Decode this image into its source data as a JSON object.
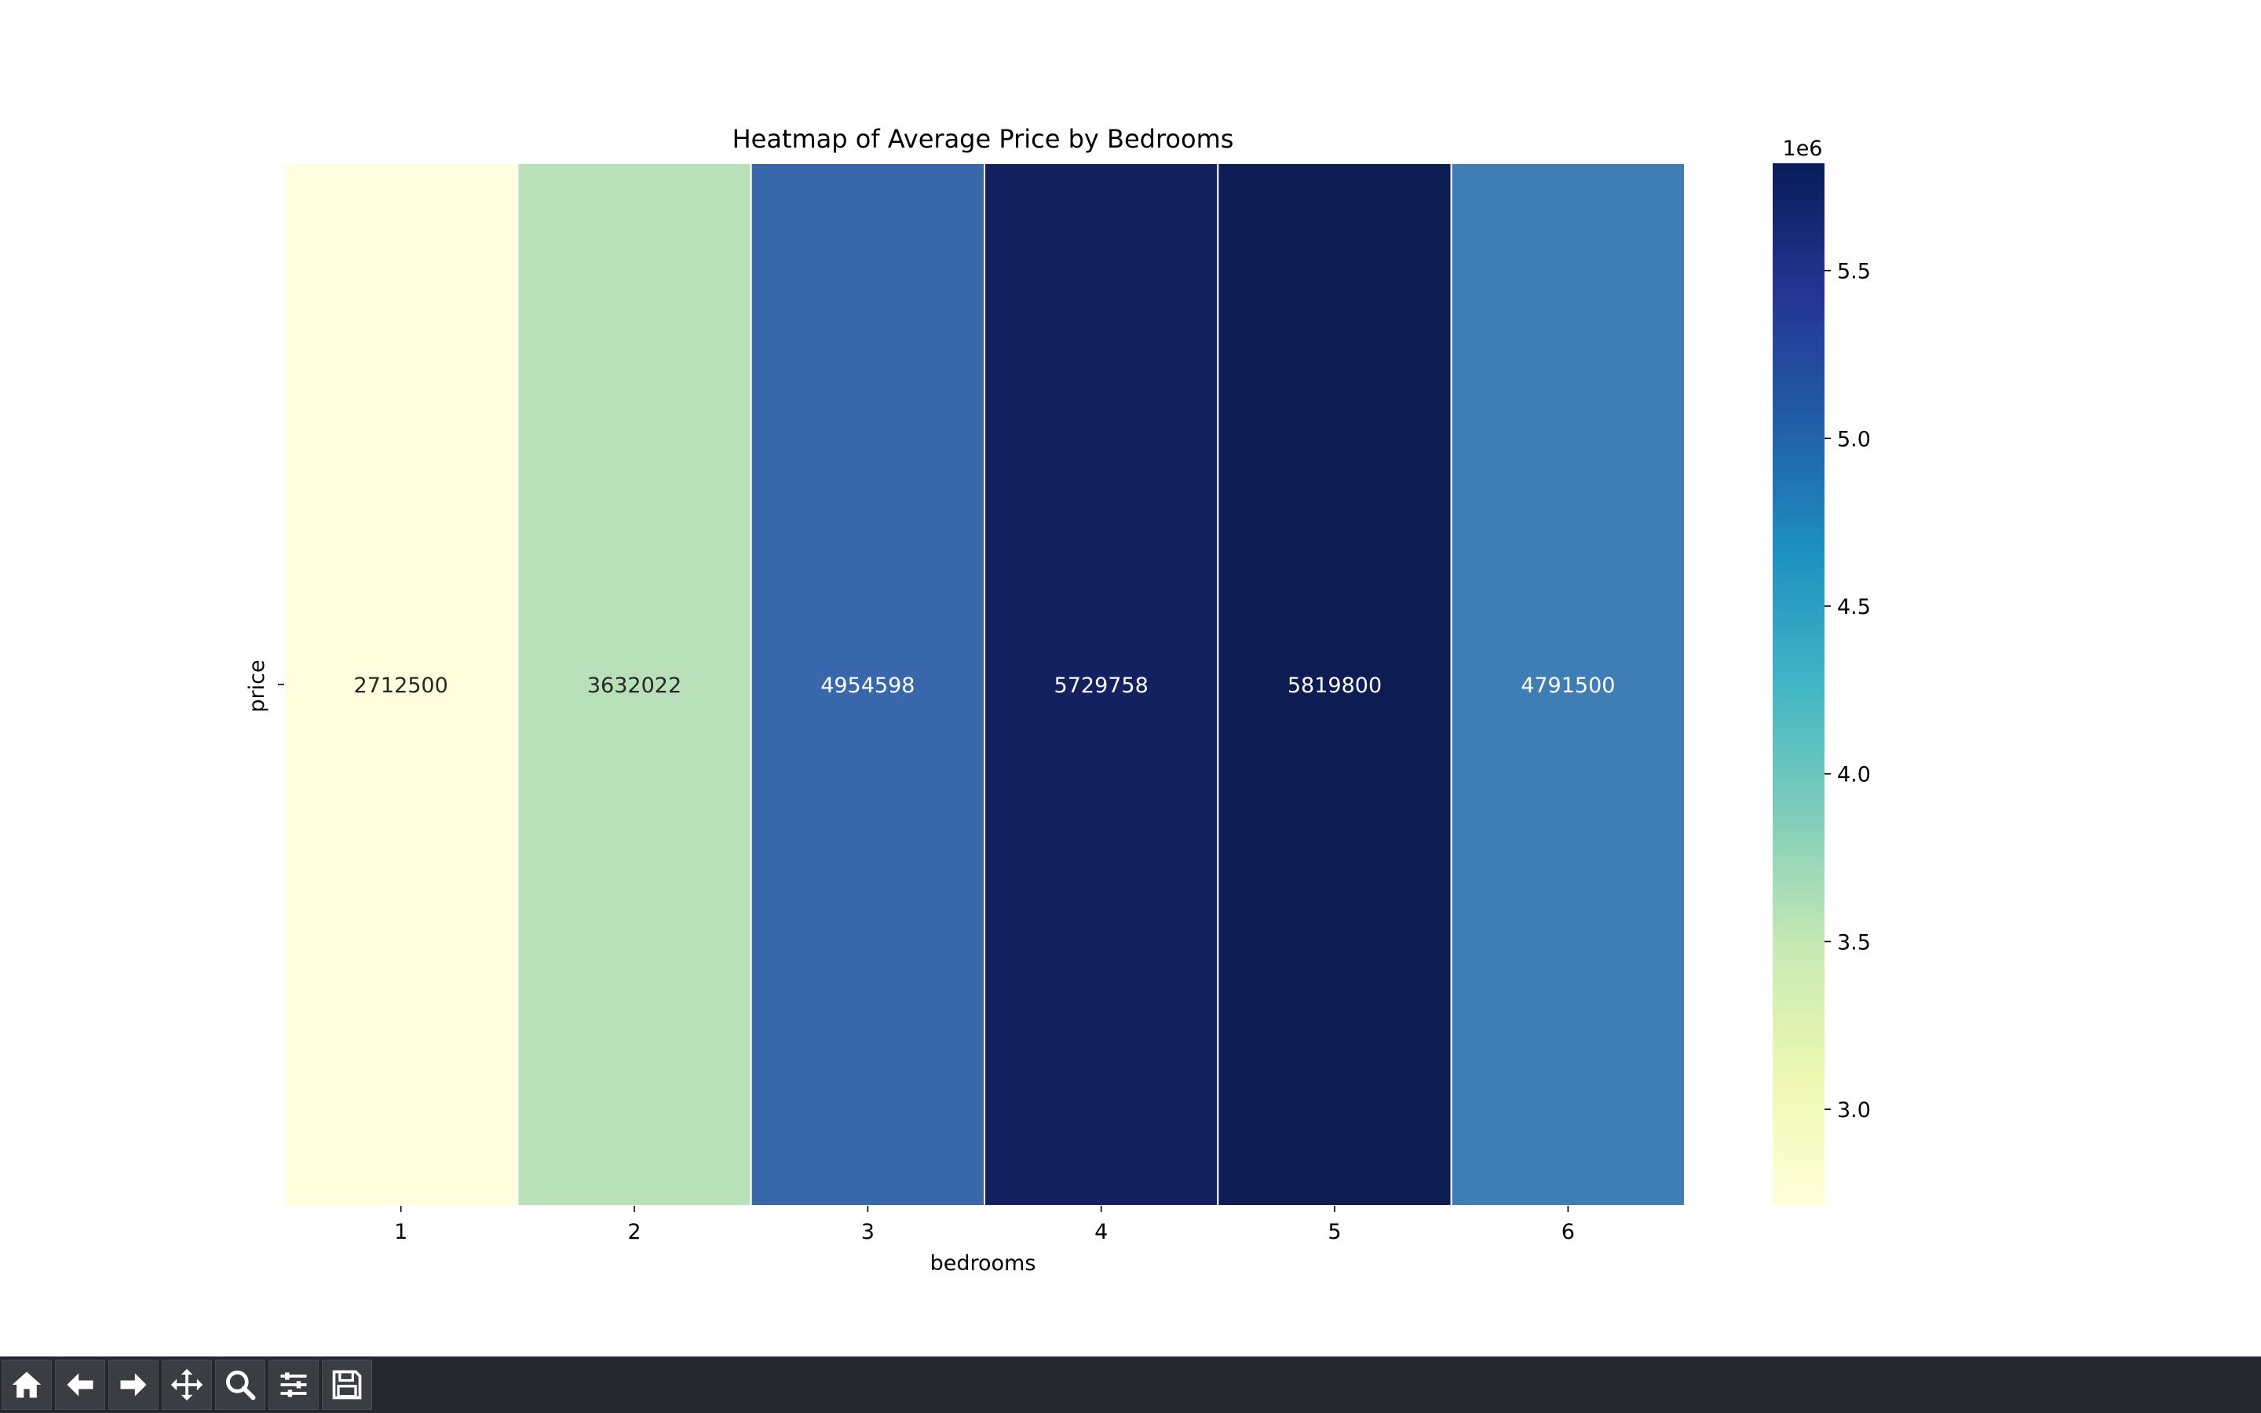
{
  "chart_data": {
    "type": "heatmap",
    "title": "Heatmap of Average Price by Bedrooms",
    "xlabel": "bedrooms",
    "ylabel": "price",
    "x_categories": [
      "1",
      "2",
      "3",
      "4",
      "5",
      "6"
    ],
    "y_categories": [
      ""
    ],
    "values": [
      [
        2712500,
        3632022,
        4954598,
        5729758,
        5819800,
        4791500
      ]
    ],
    "annotations": [
      "2712500",
      "3632022",
      "4954598",
      "5729758",
      "5819800",
      "4791500"
    ],
    "colormap": "YlGnBu",
    "colorbar": {
      "min": 2712500,
      "max": 5819800,
      "ticks": [
        3.0,
        3.5,
        4.0,
        4.5,
        5.0,
        5.5
      ],
      "tick_labels": [
        "3.0",
        "3.5",
        "4.0",
        "4.5",
        "5.0",
        "5.5"
      ],
      "multiplier": 1000000,
      "offset_label": "1e6"
    },
    "colors": {
      "cells": [
        "#ffffdd",
        "#b8e0b9",
        "#3868ab",
        "#142160",
        "#0e1c54",
        "#3e7eb5"
      ],
      "annotation_dark": "#262626",
      "annotation_light": "#ffffff"
    }
  },
  "toolbar": {
    "buttons": [
      {
        "name": "home-icon"
      },
      {
        "name": "back-icon"
      },
      {
        "name": "forward-icon"
      },
      {
        "name": "pan-icon"
      },
      {
        "name": "zoom-icon"
      },
      {
        "name": "configure-subplots-icon"
      },
      {
        "name": "save-icon"
      }
    ]
  }
}
